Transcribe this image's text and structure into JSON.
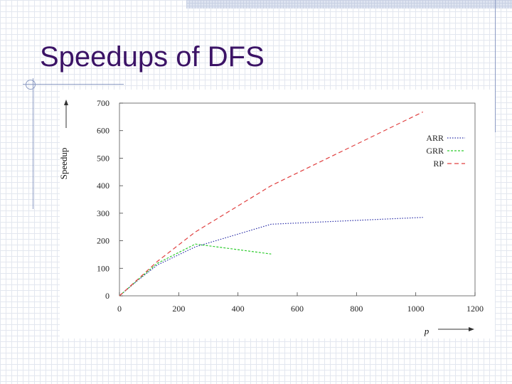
{
  "slide": {
    "title": "Speedups of DFS"
  },
  "chart_data": {
    "type": "line",
    "title": "",
    "xlabel": "p",
    "ylabel": "Speedup",
    "xlim": [
      0,
      1200
    ],
    "ylim": [
      0,
      700
    ],
    "xticks": [
      0,
      200,
      400,
      600,
      800,
      1000,
      1200
    ],
    "yticks": [
      0,
      100,
      200,
      300,
      400,
      500,
      600,
      700
    ],
    "grid": false,
    "legend_position": "top-right",
    "series": [
      {
        "name": "ARR",
        "color": "#2b2fa8",
        "dash": "dotted",
        "points": [
          [
            0,
            0
          ],
          [
            64,
            58
          ],
          [
            128,
            112
          ],
          [
            256,
            178
          ],
          [
            512,
            260
          ],
          [
            1024,
            285
          ]
        ]
      },
      {
        "name": "GRR",
        "color": "#2ecc2e",
        "dash": "dashed",
        "points": [
          [
            0,
            0
          ],
          [
            64,
            60
          ],
          [
            128,
            118
          ],
          [
            256,
            188
          ],
          [
            512,
            152
          ]
        ]
      },
      {
        "name": "RP",
        "color": "#e04040",
        "dash": "long-dashed",
        "points": [
          [
            0,
            0
          ],
          [
            64,
            62
          ],
          [
            128,
            125
          ],
          [
            256,
            232
          ],
          [
            512,
            400
          ],
          [
            1024,
            668
          ]
        ]
      }
    ]
  }
}
